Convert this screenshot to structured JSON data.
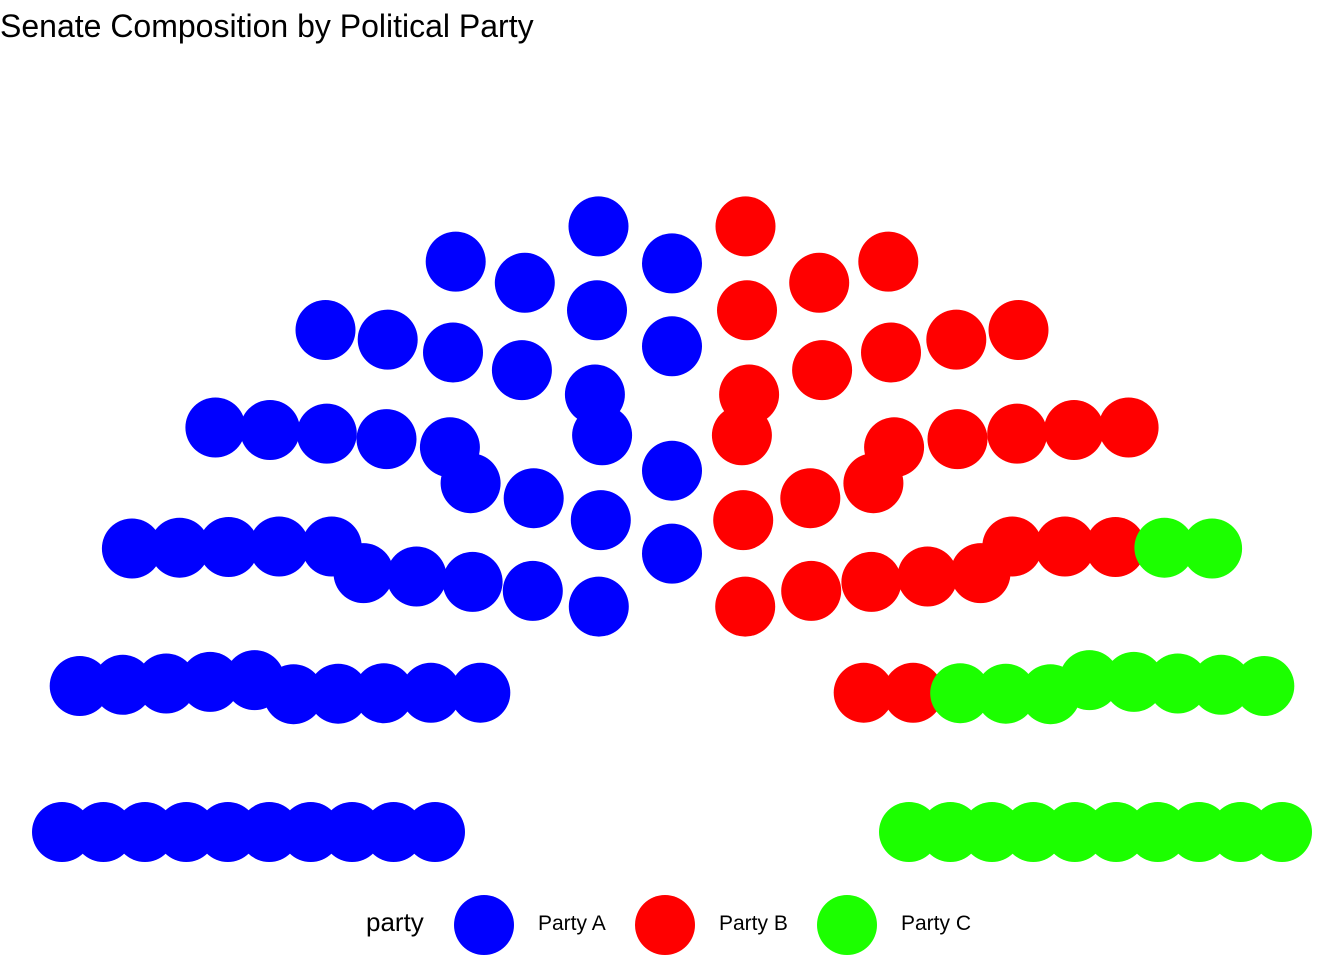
{
  "chart_data": {
    "type": "parliament",
    "title": "Senate Composition by Political Party",
    "legend_title": "party",
    "legend_position": "bottom",
    "total_seats": 100,
    "rows": 10,
    "series": [
      {
        "name": "Party A",
        "seats": 52,
        "color": "#0000FF"
      },
      {
        "name": "Party B",
        "seats": 28,
        "color": "#FF0000"
      },
      {
        "name": "Party C",
        "seats": 20,
        "color": "#1CFF00"
      }
    ]
  }
}
